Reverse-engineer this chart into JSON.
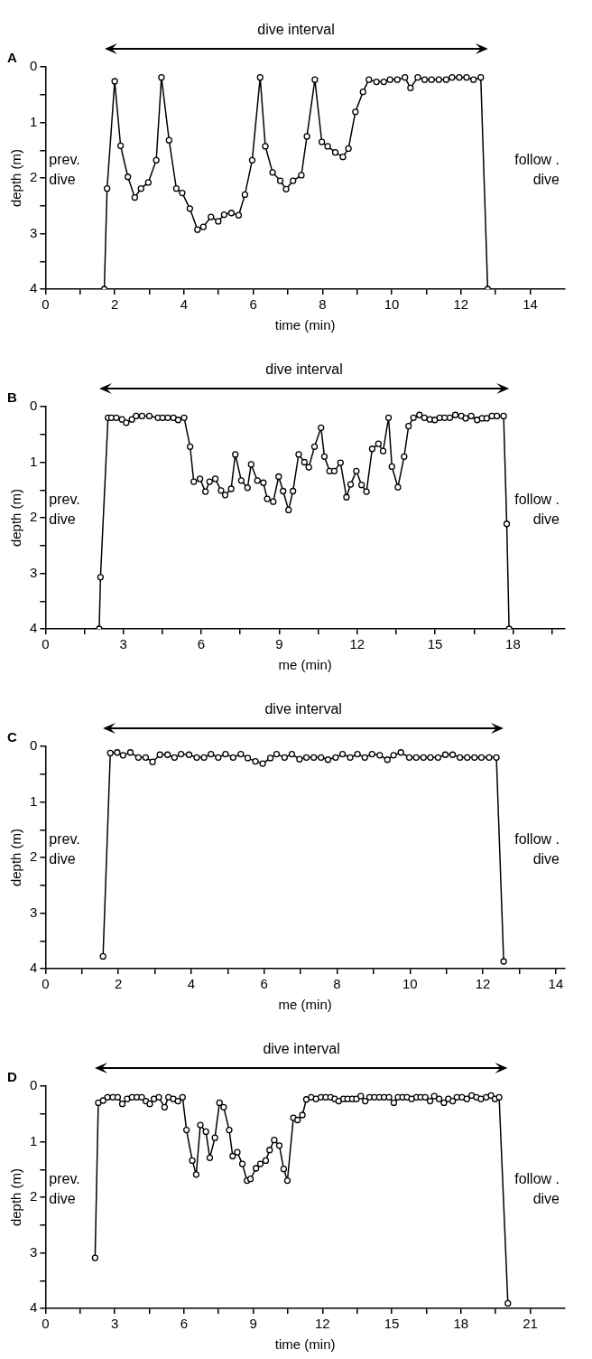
{
  "chart_data": [
    {
      "type": "line",
      "title": "A",
      "xlabel": "time (min)",
      "ylabel": "depth (m)",
      "annotations": [
        "dive interval",
        "prev. dive",
        "follow . dive"
      ],
      "marker": "circle",
      "xlim": [
        0,
        15
      ],
      "xticks": [
        0,
        {
          "value": 1,
          "label": null
        },
        2,
        {
          "value": 3,
          "label": null
        },
        4,
        {
          "value": 5,
          "label": null
        },
        6,
        {
          "value": 7,
          "label": null
        },
        8,
        {
          "value": 9,
          "label": null
        },
        10,
        {
          "value": 11,
          "label": null
        },
        12,
        {
          "value": 13,
          "label": null
        },
        14
      ],
      "ylim": [
        4,
        0
      ],
      "yticks": [
        0,
        {
          "value": 0.5,
          "label": null
        },
        1,
        {
          "value": 1.5,
          "label": null
        },
        2,
        {
          "value": 2.5,
          "label": null
        },
        3,
        {
          "value": 3.5,
          "label": null
        },
        4
      ],
      "series": [
        {
          "color": "#000000",
          "x": [
            1.7,
            1.78,
            2.0,
            2.17,
            2.38,
            2.58,
            2.76,
            2.97,
            3.2,
            3.35,
            3.57,
            3.78,
            3.95,
            4.17,
            4.39,
            4.56,
            4.78,
            4.99,
            5.16,
            5.37,
            5.58,
            5.76,
            5.97,
            6.2,
            6.35,
            6.56,
            6.78,
            6.95,
            7.15,
            7.39,
            7.55,
            7.78,
            7.98,
            8.15,
            8.37,
            8.59,
            8.75,
            8.95,
            9.17,
            9.34,
            9.56,
            9.77,
            9.95,
            10.16,
            10.38,
            10.54,
            10.75,
            10.95,
            11.15,
            11.36,
            11.57,
            11.74,
            11.95,
            12.16,
            12.36,
            12.57,
            12.77
          ],
          "values": [
            4,
            2.19,
            0.26,
            1.42,
            1.98,
            2.35,
            2.19,
            2.08,
            1.68,
            0.19,
            1.32,
            2.19,
            2.27,
            2.55,
            2.93,
            2.88,
            2.7,
            2.78,
            2.66,
            2.63,
            2.67,
            2.3,
            1.68,
            0.19,
            1.43,
            1.9,
            2.05,
            2.2,
            2.05,
            1.95,
            1.25,
            0.23,
            1.35,
            1.43,
            1.54,
            1.62,
            1.47,
            0.81,
            0.45,
            0.23,
            0.27,
            0.27,
            0.23,
            0.23,
            0.19,
            0.38,
            0.19,
            0.23,
            0.23,
            0.23,
            0.23,
            0.19,
            0.19,
            0.19,
            0.23,
            0.19,
            4
          ]
        }
      ]
    },
    {
      "type": "line",
      "title": "B",
      "xlabel": "me (min)",
      "ylabel": "depth (m)",
      "annotations": [
        "dive interval",
        "prev. dive",
        "follow . dive"
      ],
      "marker": "circle",
      "xlim": [
        0,
        20
      ],
      "xticks": [
        0,
        {
          "value": 1.5,
          "label": null
        },
        3,
        {
          "value": 4.5,
          "label": null
        },
        6,
        {
          "value": 7.5,
          "label": null
        },
        9,
        {
          "value": 10.5,
          "label": null
        },
        12,
        {
          "value": 13.5,
          "label": null
        },
        15,
        {
          "value": 16.5,
          "label": null
        },
        18,
        {
          "value": 19.5,
          "label": null
        }
      ],
      "ylim": [
        4,
        0
      ],
      "yticks": [
        0,
        {
          "value": 0.5,
          "label": null
        },
        1,
        {
          "value": 1.5,
          "label": null
        },
        2,
        {
          "value": 2.5,
          "label": null
        },
        3,
        {
          "value": 3.5,
          "label": null
        },
        4
      ],
      "series": [
        {
          "color": "#000000",
          "x": [
            2.07,
            2.12,
            2.41,
            2.54,
            2.73,
            2.95,
            3.11,
            3.33,
            3.49,
            3.72,
            4.0,
            4.33,
            4.51,
            4.71,
            4.93,
            5.11,
            5.34,
            5.57,
            5.71,
            5.95,
            6.16,
            6.32,
            6.54,
            6.76,
            6.92,
            7.15,
            7.31,
            7.54,
            7.78,
            7.92,
            8.16,
            8.39,
            8.54,
            8.77,
            8.98,
            9.15,
            9.36,
            9.53,
            9.75,
            9.97,
            10.14,
            10.36,
            10.61,
            10.74,
            10.94,
            11.12,
            11.36,
            11.59,
            11.75,
            11.97,
            12.17,
            12.36,
            12.58,
            12.82,
            13.0,
            13.21,
            13.34,
            13.57,
            13.81,
            13.98,
            14.17,
            14.4,
            14.59,
            14.8,
            14.99,
            15.18,
            15.37,
            15.57,
            15.78,
            16.01,
            16.18,
            16.39,
            16.62,
            16.81,
            16.99,
            17.19,
            17.38,
            17.64,
            17.76,
            17.85
          ],
          "values": [
            4,
            3.07,
            0.2,
            0.2,
            0.2,
            0.23,
            0.29,
            0.23,
            0.17,
            0.17,
            0.17,
            0.2,
            0.2,
            0.2,
            0.2,
            0.24,
            0.2,
            0.72,
            1.35,
            1.3,
            1.53,
            1.35,
            1.3,
            1.51,
            1.59,
            1.48,
            0.86,
            1.33,
            1.46,
            1.04,
            1.33,
            1.37,
            1.66,
            1.71,
            1.26,
            1.52,
            1.86,
            1.52,
            0.86,
            1.0,
            1.09,
            0.72,
            0.38,
            0.9,
            1.16,
            1.16,
            1.01,
            1.63,
            1.4,
            1.16,
            1.41,
            1.53,
            0.76,
            0.67,
            0.8,
            0.2,
            1.08,
            1.45,
            0.9,
            0.35,
            0.2,
            0.15,
            0.2,
            0.23,
            0.24,
            0.2,
            0.2,
            0.2,
            0.15,
            0.17,
            0.21,
            0.17,
            0.24,
            0.21,
            0.21,
            0.17,
            0.17,
            0.17,
            2.11,
            4
          ]
        }
      ]
    },
    {
      "type": "line",
      "title": "C",
      "xlabel": "me (min)",
      "ylabel": "depth (m)",
      "annotations": [
        "dive interval",
        "prev. dive",
        "follow . dive"
      ],
      "marker": "circle",
      "xlim": [
        0,
        14.25
      ],
      "xticks": [
        0,
        {
          "value": 1,
          "label": null
        },
        2,
        {
          "value": 3,
          "label": null
        },
        4,
        {
          "value": 5,
          "label": null
        },
        6,
        {
          "value": 7,
          "label": null
        },
        8,
        {
          "value": 9,
          "label": null
        },
        10,
        {
          "value": 11,
          "label": null
        },
        12,
        {
          "value": 13,
          "label": null
        },
        14
      ],
      "ylim": [
        4,
        0
      ],
      "yticks": [
        0,
        {
          "value": 0.5,
          "label": null
        },
        1,
        {
          "value": 1.5,
          "label": null
        },
        2,
        {
          "value": 2.5,
          "label": null
        },
        3,
        {
          "value": 3.5,
          "label": null
        },
        4
      ],
      "series": [
        {
          "color": "#000000",
          "x": [
            1.58,
            1.78,
            1.97,
            2.13,
            2.33,
            2.55,
            2.75,
            2.94,
            3.14,
            3.35,
            3.54,
            3.72,
            3.94,
            4.15,
            4.35,
            4.54,
            4.74,
            4.94,
            5.15,
            5.36,
            5.55,
            5.76,
            5.96,
            6.17,
            6.34,
            6.56,
            6.76,
            6.97,
            7.16,
            7.36,
            7.56,
            7.75,
            7.96,
            8.15,
            8.36,
            8.56,
            8.76,
            8.96,
            9.17,
            9.38,
            9.55,
            9.75,
            9.98,
            10.17,
            10.37,
            10.56,
            10.77,
            10.97,
            11.17,
            11.37,
            11.57,
            11.77,
            11.96,
            12.17,
            12.37,
            12.57
          ],
          "values": [
            3.78,
            0.12,
            0.11,
            0.16,
            0.11,
            0.2,
            0.2,
            0.28,
            0.15,
            0.15,
            0.2,
            0.14,
            0.15,
            0.2,
            0.2,
            0.14,
            0.2,
            0.14,
            0.2,
            0.14,
            0.21,
            0.27,
            0.31,
            0.21,
            0.14,
            0.2,
            0.14,
            0.23,
            0.2,
            0.2,
            0.2,
            0.24,
            0.2,
            0.14,
            0.2,
            0.14,
            0.2,
            0.14,
            0.16,
            0.24,
            0.16,
            0.11,
            0.2,
            0.2,
            0.2,
            0.2,
            0.2,
            0.15,
            0.15,
            0.2,
            0.2,
            0.2,
            0.2,
            0.2,
            0.2,
            3.87
          ]
        }
      ]
    },
    {
      "type": "line",
      "title": "D",
      "xlabel": "time (min)",
      "ylabel": "depth (m)",
      "annotations": [
        "dive interval",
        "prev. dive",
        "follow . dive"
      ],
      "marker": "circle",
      "xlim": [
        0,
        22.5
      ],
      "xticks": [
        0,
        {
          "value": 1.5,
          "label": null
        },
        3,
        {
          "value": 4.5,
          "label": null
        },
        6,
        {
          "value": 7.5,
          "label": null
        },
        9,
        {
          "value": 10.5,
          "label": null
        },
        12,
        {
          "value": 13.5,
          "label": null
        },
        15,
        {
          "value": 16.5,
          "label": null
        },
        18,
        {
          "value": 19.5,
          "label": null
        },
        21
      ],
      "ylim": [
        4,
        0
      ],
      "yticks": [
        0,
        {
          "value": 0.5,
          "label": null
        },
        1,
        {
          "value": 1.5,
          "label": null
        },
        2,
        {
          "value": 2.5,
          "label": null
        },
        3,
        {
          "value": 3.5,
          "label": null
        },
        4
      ],
      "series": [
        {
          "color": "#000000",
          "x": [
            2.15,
            2.29,
            2.5,
            2.69,
            2.92,
            3.13,
            3.33,
            3.54,
            3.75,
            3.96,
            4.17,
            4.35,
            4.52,
            4.7,
            4.91,
            5.16,
            5.33,
            5.54,
            5.74,
            5.94,
            6.11,
            6.36,
            6.53,
            6.71,
            6.95,
            7.12,
            7.34,
            7.54,
            7.72,
            7.96,
            8.11,
            8.31,
            8.53,
            8.73,
            8.88,
            9.12,
            9.31,
            9.54,
            9.71,
            9.91,
            10.13,
            10.32,
            10.48,
            10.74,
            10.92,
            11.13,
            11.3,
            11.51,
            11.72,
            11.93,
            12.14,
            12.35,
            12.53,
            12.7,
            12.91,
            13.09,
            13.29,
            13.47,
            13.66,
            13.85,
            14.04,
            14.25,
            14.46,
            14.67,
            14.88,
            15.09,
            15.27,
            15.47,
            15.66,
            15.86,
            16.07,
            16.25,
            16.45,
            16.66,
            16.84,
            17.05,
            17.26,
            17.45,
            17.64,
            17.82,
            18.04,
            18.25,
            18.46,
            18.67,
            18.86,
            19.09,
            19.3,
            19.47,
            19.65,
            20.03
          ],
          "values": [
            3.09,
            0.3,
            0.26,
            0.2,
            0.2,
            0.2,
            0.32,
            0.23,
            0.2,
            0.2,
            0.2,
            0.27,
            0.32,
            0.23,
            0.2,
            0.38,
            0.2,
            0.23,
            0.27,
            0.2,
            0.79,
            1.34,
            1.59,
            0.7,
            0.82,
            1.29,
            0.93,
            0.3,
            0.38,
            0.79,
            1.26,
            1.19,
            1.4,
            1.7,
            1.67,
            1.48,
            1.4,
            1.34,
            1.15,
            0.97,
            1.07,
            1.49,
            1.7,
            0.57,
            0.61,
            0.52,
            0.24,
            0.2,
            0.23,
            0.2,
            0.2,
            0.2,
            0.23,
            0.27,
            0.23,
            0.23,
            0.23,
            0.23,
            0.18,
            0.27,
            0.2,
            0.2,
            0.2,
            0.2,
            0.2,
            0.3,
            0.2,
            0.2,
            0.2,
            0.23,
            0.2,
            0.2,
            0.2,
            0.27,
            0.18,
            0.23,
            0.3,
            0.23,
            0.27,
            0.2,
            0.2,
            0.23,
            0.17,
            0.2,
            0.23,
            0.2,
            0.17,
            0.23,
            0.2,
            3.91
          ]
        }
      ]
    }
  ]
}
